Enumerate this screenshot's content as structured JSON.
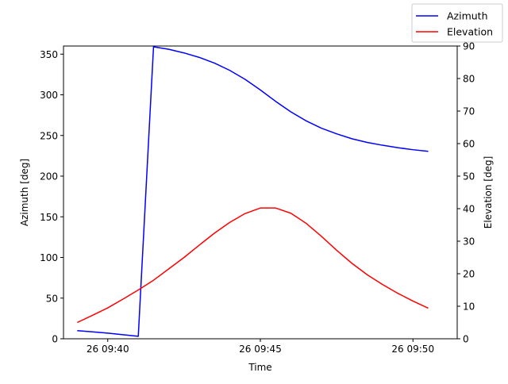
{
  "chart_data": {
    "type": "line",
    "xlabel": "Time",
    "y_left_label": "Azimuth [deg]",
    "y_right_label": "Elevation [deg]",
    "x_ticks": [
      "26 09:40",
      "26 09:45",
      "26 09:50"
    ],
    "x_tick_minutes": [
      40,
      45,
      50
    ],
    "x_range_minutes": [
      38.55,
      51.45
    ],
    "y_left_range": [
      0,
      360
    ],
    "y_left_ticks": [
      0,
      50,
      100,
      150,
      200,
      250,
      300,
      350
    ],
    "y_right_range": [
      0,
      90
    ],
    "y_right_ticks": [
      0,
      10,
      20,
      30,
      40,
      50,
      60,
      70,
      80,
      90
    ],
    "grid": false,
    "legend_position": "top-right",
    "series": [
      {
        "name": "Azimuth",
        "axis": "left",
        "color": "#0000ff",
        "x_minutes": [
          39.0,
          39.5,
          40.0,
          40.5,
          41.0,
          41.5,
          42.0,
          42.5,
          43.0,
          43.5,
          44.0,
          44.5,
          45.0,
          45.5,
          46.0,
          46.5,
          47.0,
          47.5,
          48.0,
          48.5,
          49.0,
          49.5,
          50.0,
          50.5
        ],
        "values": [
          10,
          8.5,
          7,
          5,
          3,
          359,
          356,
          351.5,
          346,
          339,
          330,
          319,
          306,
          292,
          279,
          268,
          259,
          252,
          246,
          241.5,
          238,
          235,
          232.5,
          230.5
        ]
      },
      {
        "name": "Elevation",
        "axis": "right",
        "color": "#ff0000",
        "x_minutes": [
          39.0,
          39.5,
          40.0,
          40.5,
          41.0,
          41.5,
          42.0,
          42.5,
          43.0,
          43.5,
          44.0,
          44.5,
          45.0,
          45.5,
          46.0,
          46.5,
          47.0,
          47.5,
          48.0,
          48.5,
          49.0,
          49.5,
          50.0,
          50.5
        ],
        "values": [
          5,
          7.2,
          9.5,
          12.2,
          15,
          18,
          21.5,
          25,
          28.8,
          32.5,
          35.8,
          38.5,
          40.2,
          40.2,
          38.6,
          35.5,
          31.5,
          27.2,
          23.2,
          19.7,
          16.7,
          14,
          11.6,
          9.4
        ]
      }
    ]
  }
}
